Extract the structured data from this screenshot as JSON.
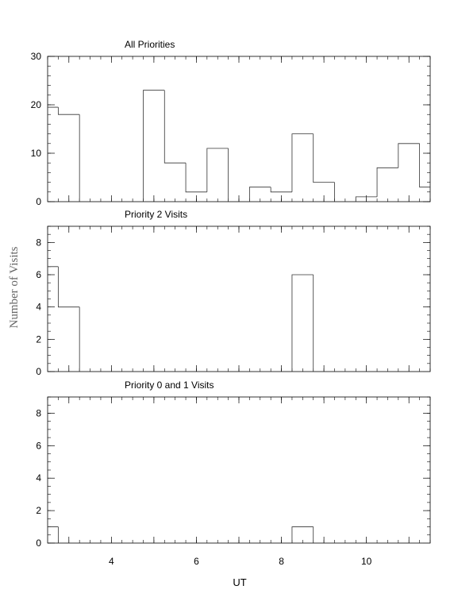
{
  "figure": {
    "ylabel": "Number of Visits",
    "xlabel": "UT"
  },
  "chart_data": [
    {
      "type": "bar",
      "title": "All Priorities",
      "bin_edges": [
        2.5,
        2.75,
        3.25,
        3.75,
        4.25,
        4.75,
        5.25,
        5.75,
        6.25,
        6.75,
        7.25,
        7.75,
        8.25,
        8.75,
        9.25,
        9.75,
        10.25,
        10.75,
        11.25,
        11.5
      ],
      "values": [
        19.5,
        18,
        0,
        0,
        0,
        23,
        8,
        2,
        11,
        0,
        3,
        2,
        14,
        4,
        0,
        1,
        7,
        12,
        3
      ],
      "xlim": [
        2.5,
        11.5
      ],
      "ylim": [
        0,
        30
      ],
      "yticks": [
        0,
        10,
        20,
        30
      ],
      "xticks": [],
      "grid": false
    },
    {
      "type": "bar",
      "title": "Priority 2 Visits",
      "bin_edges": [
        2.5,
        2.75,
        3.25,
        3.75,
        4.25,
        4.75,
        5.25,
        5.75,
        6.25,
        6.75,
        7.25,
        7.75,
        8.25,
        8.75,
        9.25,
        9.75,
        10.25,
        10.75,
        11.25,
        11.5
      ],
      "values": [
        6.5,
        4,
        0,
        0,
        0,
        0,
        0,
        0,
        0,
        0,
        0,
        0,
        6,
        0,
        0,
        0,
        0,
        0,
        0
      ],
      "xlim": [
        2.5,
        11.5
      ],
      "ylim": [
        0,
        9
      ],
      "yticks": [
        0,
        2,
        4,
        6,
        8
      ],
      "xticks": [],
      "grid": false
    },
    {
      "type": "bar",
      "title": "Priority 0 and 1 Visits",
      "bin_edges": [
        2.5,
        2.75,
        3.25,
        3.75,
        4.25,
        4.75,
        5.25,
        5.75,
        6.25,
        6.75,
        7.25,
        7.75,
        8.25,
        8.75,
        9.25,
        9.75,
        10.25,
        10.75,
        11.25,
        11.5
      ],
      "values": [
        1,
        0,
        0,
        0,
        0,
        0,
        0,
        0,
        0,
        0,
        0,
        0,
        1,
        0,
        0,
        0,
        0,
        0,
        0
      ],
      "xlim": [
        2.5,
        11.5
      ],
      "ylim": [
        0,
        9
      ],
      "yticks": [
        0,
        2,
        4,
        6,
        8
      ],
      "xticks": [
        4,
        6,
        8,
        10
      ],
      "grid": false
    }
  ]
}
